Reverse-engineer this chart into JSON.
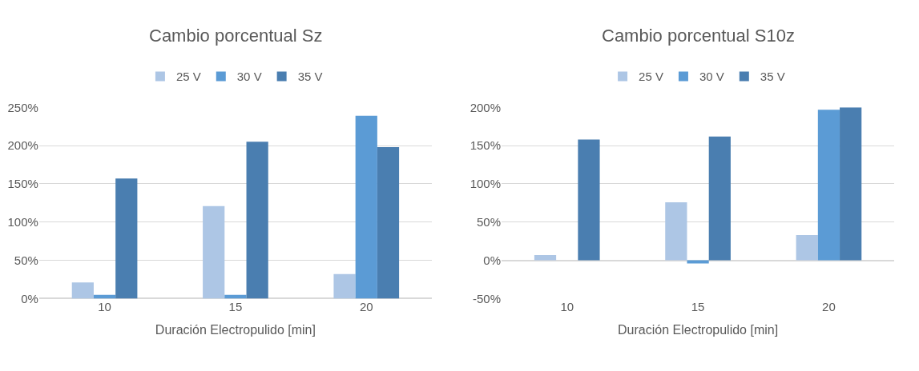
{
  "chart_data": [
    {
      "type": "bar",
      "title": "Cambio porcentual Sz",
      "xlabel": "Duración Electropulido [min]",
      "categories": [
        "10",
        "15",
        "20"
      ],
      "series": [
        {
          "name": "25 V",
          "color": "#adc6e5",
          "values": [
            21,
            121,
            32
          ]
        },
        {
          "name": "30 V",
          "color": "#5b9bd5",
          "values": [
            5,
            5,
            239
          ]
        },
        {
          "name": "35 V",
          "color": "#4a7eb0",
          "values": [
            157,
            205,
            198
          ]
        }
      ],
      "ylim": [
        0,
        250
      ],
      "yticks": [
        {
          "value": 0,
          "label": "0%"
        },
        {
          "value": 50,
          "label": "50%"
        },
        {
          "value": 100,
          "label": "100%"
        },
        {
          "value": 150,
          "label": "150%"
        },
        {
          "value": 200,
          "label": "200%"
        },
        {
          "value": 250,
          "label": "250%"
        }
      ],
      "grid": "y",
      "legend": "top"
    },
    {
      "type": "bar",
      "title": "Cambio porcentual S10z",
      "xlabel": "Duración Electropulido [min]",
      "categories": [
        "10",
        "15",
        "20"
      ],
      "series": [
        {
          "name": "25 V",
          "color": "#adc6e5",
          "values": [
            7,
            76,
            33
          ]
        },
        {
          "name": "30 V",
          "color": "#5b9bd5",
          "values": [
            0,
            -4,
            197
          ]
        },
        {
          "name": "35 V",
          "color": "#4a7eb0",
          "values": [
            158,
            162,
            200
          ]
        }
      ],
      "ylim": [
        -50,
        200
      ],
      "yticks": [
        {
          "value": -50,
          "label": "-50%"
        },
        {
          "value": 0,
          "label": "0%"
        },
        {
          "value": 50,
          "label": "50%"
        },
        {
          "value": 100,
          "label": "100%"
        },
        {
          "value": 150,
          "label": "150%"
        },
        {
          "value": 200,
          "label": "200%"
        }
      ],
      "grid": "y",
      "legend": "top"
    }
  ]
}
